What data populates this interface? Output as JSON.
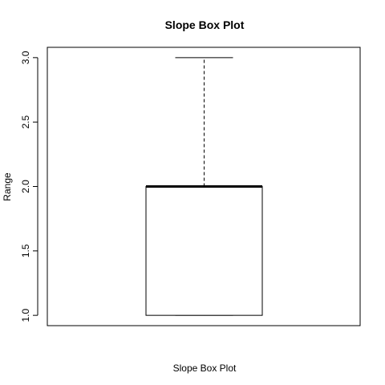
{
  "chart_data": {
    "type": "box",
    "title": "Slope Box Plot",
    "xlabel": "Slope Box Plot",
    "ylabel": "Range",
    "ylim": [
      0.92,
      3.08
    ],
    "y_ticks": [
      1.0,
      1.5,
      2.0,
      2.5,
      3.0
    ],
    "y_tick_labels": [
      "1.0",
      "1.5",
      "2.0",
      "2.5",
      "3.0"
    ],
    "box": {
      "min": 1.0,
      "q1": 1.0,
      "median": 2.0,
      "q3": 2.0,
      "max": 3.0
    },
    "grid": false,
    "colors": {
      "background": "#ffffff",
      "stroke": "#000000",
      "box_fill": "#ffffff"
    }
  }
}
